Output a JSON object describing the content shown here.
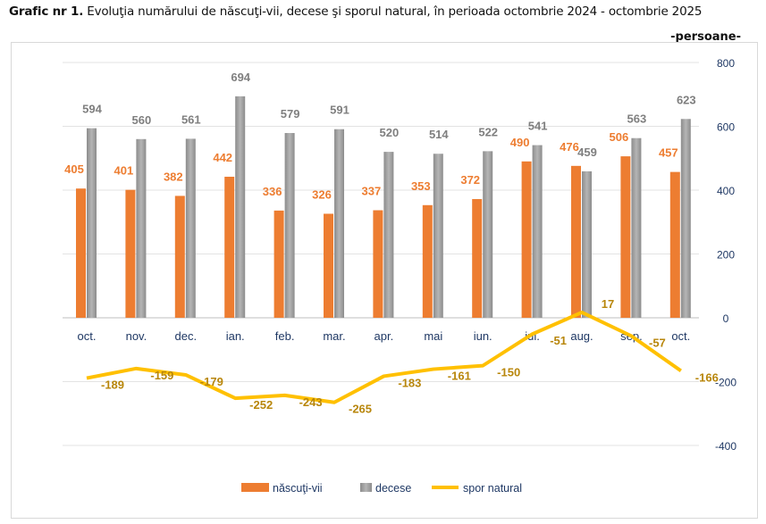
{
  "chart_data": {
    "type": "bar",
    "title_prefix": "Grafic nr 1.",
    "title": "Evoluţia numărului de născuţi-vii, decese şi sporul natural, în perioada  octombrie 2024 - octombrie 2025",
    "unit": "-persoane-",
    "categories": [
      "oct.",
      "nov.",
      "dec.",
      "ian.",
      "feb.",
      "mar.",
      "apr.",
      "mai",
      "iun.",
      "iul.",
      "aug.",
      "sep.",
      "oct."
    ],
    "series": [
      {
        "name": "născuţi-vii",
        "type": "bar",
        "color": "#ED7D31",
        "values": [
          405,
          401,
          382,
          442,
          336,
          326,
          337,
          353,
          372,
          490,
          476,
          506,
          457
        ]
      },
      {
        "name": "decese",
        "type": "bar",
        "color": "#A5A5A5",
        "values": [
          594,
          560,
          561,
          694,
          579,
          591,
          520,
          514,
          522,
          541,
          459,
          563,
          623
        ]
      },
      {
        "name": "spor natural",
        "type": "line",
        "color": "#FFC000",
        "values": [
          -189,
          -159,
          -179,
          -252,
          -243,
          -265,
          -183,
          -161,
          -150,
          -51,
          17,
          -57,
          -166
        ]
      }
    ],
    "yticks": [
      "800",
      "600",
      "400",
      "200",
      "0",
      "-200",
      "-400"
    ],
    "ylim": [
      -400,
      800
    ],
    "grid": true,
    "legend": "bottom"
  }
}
